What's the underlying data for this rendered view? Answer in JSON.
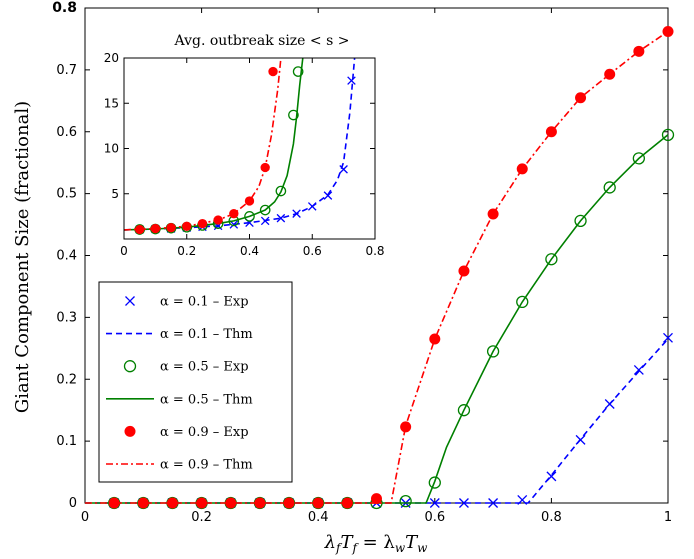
{
  "chart_data": [
    {
      "type": "line",
      "xlabel": "λ_f T_f = λ_w T_w",
      "ylabel": "Giant Component Size (fractional)",
      "xlim": [
        0,
        1
      ],
      "ylim": [
        0,
        0.8
      ],
      "xticks": [
        "0",
        "0.2",
        "0.4",
        "0.6",
        "0.8",
        "1"
      ],
      "yticks": [
        "0",
        "0.1",
        "0.2",
        "0.3",
        "0.4",
        "0.5",
        "0.6",
        "0.7",
        "0.8"
      ],
      "grid": false,
      "legend_position": "bottom-left",
      "series": [
        {
          "name": "α = 0.1 – Exp",
          "style": "marker-x",
          "color": "#0000ff",
          "x": [
            0.05,
            0.1,
            0.15,
            0.2,
            0.25,
            0.3,
            0.35,
            0.4,
            0.45,
            0.5,
            0.55,
            0.6,
            0.65,
            0.7,
            0.75,
            0.8,
            0.85,
            0.9,
            0.95,
            1.0
          ],
          "y": [
            0,
            0,
            0,
            0,
            0,
            0,
            0,
            0,
            0,
            0,
            0,
            0,
            0,
            0,
            0.005,
            0.043,
            0.102,
            0.16,
            0.215,
            0.267
          ]
        },
        {
          "name": "α = 0.1 – Thm",
          "style": "dashed",
          "color": "#0000ff",
          "x": [
            0,
            0.76,
            0.8,
            0.85,
            0.9,
            0.95,
            1.0
          ],
          "y": [
            0,
            0,
            0.045,
            0.103,
            0.16,
            0.213,
            0.265
          ]
        },
        {
          "name": "α = 0.5 – Exp",
          "style": "marker-o",
          "color": "#008000",
          "x": [
            0.05,
            0.1,
            0.15,
            0.2,
            0.25,
            0.3,
            0.35,
            0.4,
            0.45,
            0.5,
            0.55,
            0.6,
            0.65,
            0.7,
            0.75,
            0.8,
            0.85,
            0.9,
            0.95,
            1.0
          ],
          "y": [
            0,
            0,
            0,
            0,
            0,
            0,
            0,
            0,
            0,
            0,
            0.003,
            0.033,
            0.15,
            0.245,
            0.325,
            0.394,
            0.456,
            0.51,
            0.557,
            0.595
          ]
        },
        {
          "name": "α = 0.5 – Thm",
          "style": "solid",
          "color": "#008000",
          "x": [
            0,
            0.585,
            0.6,
            0.62,
            0.65,
            0.7,
            0.75,
            0.8,
            0.85,
            0.9,
            0.95,
            1.0
          ],
          "y": [
            0,
            0,
            0.035,
            0.09,
            0.15,
            0.245,
            0.325,
            0.394,
            0.456,
            0.51,
            0.557,
            0.595
          ]
        },
        {
          "name": "α = 0.9 – Exp",
          "style": "marker-dot",
          "color": "#ff0000",
          "x": [
            0.05,
            0.1,
            0.15,
            0.2,
            0.25,
            0.3,
            0.35,
            0.4,
            0.45,
            0.5,
            0.55,
            0.6,
            0.65,
            0.7,
            0.75,
            0.8,
            0.85,
            0.9,
            0.95,
            1.0
          ],
          "y": [
            0,
            0,
            0,
            0,
            0,
            0,
            0,
            0,
            0,
            0.007,
            0.123,
            0.265,
            0.375,
            0.467,
            0.54,
            0.6,
            0.655,
            0.693,
            0.73,
            0.762
          ]
        },
        {
          "name": "α = 0.9 – Thm",
          "style": "dashdot",
          "color": "#ff0000",
          "x": [
            0,
            0.525,
            0.55,
            0.6,
            0.65,
            0.7,
            0.75,
            0.8,
            0.85,
            0.9,
            0.95,
            1.0
          ],
          "y": [
            0,
            0,
            0.125,
            0.265,
            0.375,
            0.467,
            0.54,
            0.6,
            0.655,
            0.693,
            0.73,
            0.762
          ]
        }
      ]
    },
    {
      "type": "line",
      "title": "Avg. outbreak size < s >",
      "xlim": [
        0,
        0.8
      ],
      "ylim": [
        0,
        20
      ],
      "xticks": [
        "0",
        "0.2",
        "0.4",
        "0.6",
        "0.8"
      ],
      "yticks": [
        "5",
        "10",
        "15",
        "20"
      ],
      "series": [
        {
          "name": "α = 0.1 – Exp",
          "style": "marker-x",
          "color": "#0000ff",
          "x": [
            0.05,
            0.1,
            0.15,
            0.2,
            0.25,
            0.3,
            0.35,
            0.4,
            0.45,
            0.5,
            0.55,
            0.6,
            0.65,
            0.7,
            0.725
          ],
          "y": [
            1.05,
            1.1,
            1.15,
            1.25,
            1.35,
            1.45,
            1.6,
            1.8,
            2.0,
            2.3,
            2.8,
            3.6,
            4.8,
            7.7,
            17.5
          ]
        },
        {
          "name": "α = 0.1 – Thm",
          "style": "dashed",
          "color": "#0000ff",
          "x": [
            0.0,
            0.1,
            0.2,
            0.3,
            0.4,
            0.5,
            0.55,
            0.6,
            0.65,
            0.68,
            0.7,
            0.72,
            0.735
          ],
          "y": [
            1.0,
            1.1,
            1.25,
            1.45,
            1.8,
            2.3,
            2.8,
            3.6,
            4.9,
            6.5,
            8.5,
            14.0,
            20.0
          ]
        },
        {
          "name": "α = 0.5 – Exp",
          "style": "marker-o",
          "color": "#008000",
          "x": [
            0.05,
            0.1,
            0.15,
            0.2,
            0.25,
            0.3,
            0.35,
            0.4,
            0.45,
            0.5,
            0.54,
            0.555
          ],
          "y": [
            1.05,
            1.1,
            1.2,
            1.3,
            1.5,
            1.7,
            2.0,
            2.5,
            3.2,
            5.3,
            13.7,
            18.5
          ]
        },
        {
          "name": "α = 0.5 – Thm",
          "style": "solid",
          "color": "#008000",
          "x": [
            0.0,
            0.1,
            0.2,
            0.3,
            0.35,
            0.4,
            0.45,
            0.48,
            0.5,
            0.52,
            0.54,
            0.55,
            0.56,
            0.57
          ],
          "y": [
            1.0,
            1.1,
            1.3,
            1.7,
            2.0,
            2.5,
            3.2,
            4.1,
            5.2,
            7.0,
            10.5,
            13.5,
            17.0,
            20.0
          ]
        },
        {
          "name": "α = 0.9 – Exp",
          "style": "marker-dot",
          "color": "#ff0000",
          "x": [
            0.05,
            0.1,
            0.15,
            0.2,
            0.25,
            0.3,
            0.35,
            0.4,
            0.45,
            0.475
          ],
          "y": [
            1.05,
            1.15,
            1.25,
            1.4,
            1.7,
            2.1,
            2.8,
            4.2,
            7.9,
            18.5
          ]
        },
        {
          "name": "α = 0.9 – Thm",
          "style": "dashdot",
          "color": "#ff0000",
          "x": [
            0.0,
            0.1,
            0.2,
            0.3,
            0.35,
            0.4,
            0.43,
            0.45,
            0.47,
            0.49,
            0.5
          ],
          "y": [
            1.0,
            1.15,
            1.4,
            2.1,
            2.8,
            4.2,
            5.8,
            7.9,
            11.5,
            16.5,
            20.0
          ]
        }
      ]
    }
  ]
}
